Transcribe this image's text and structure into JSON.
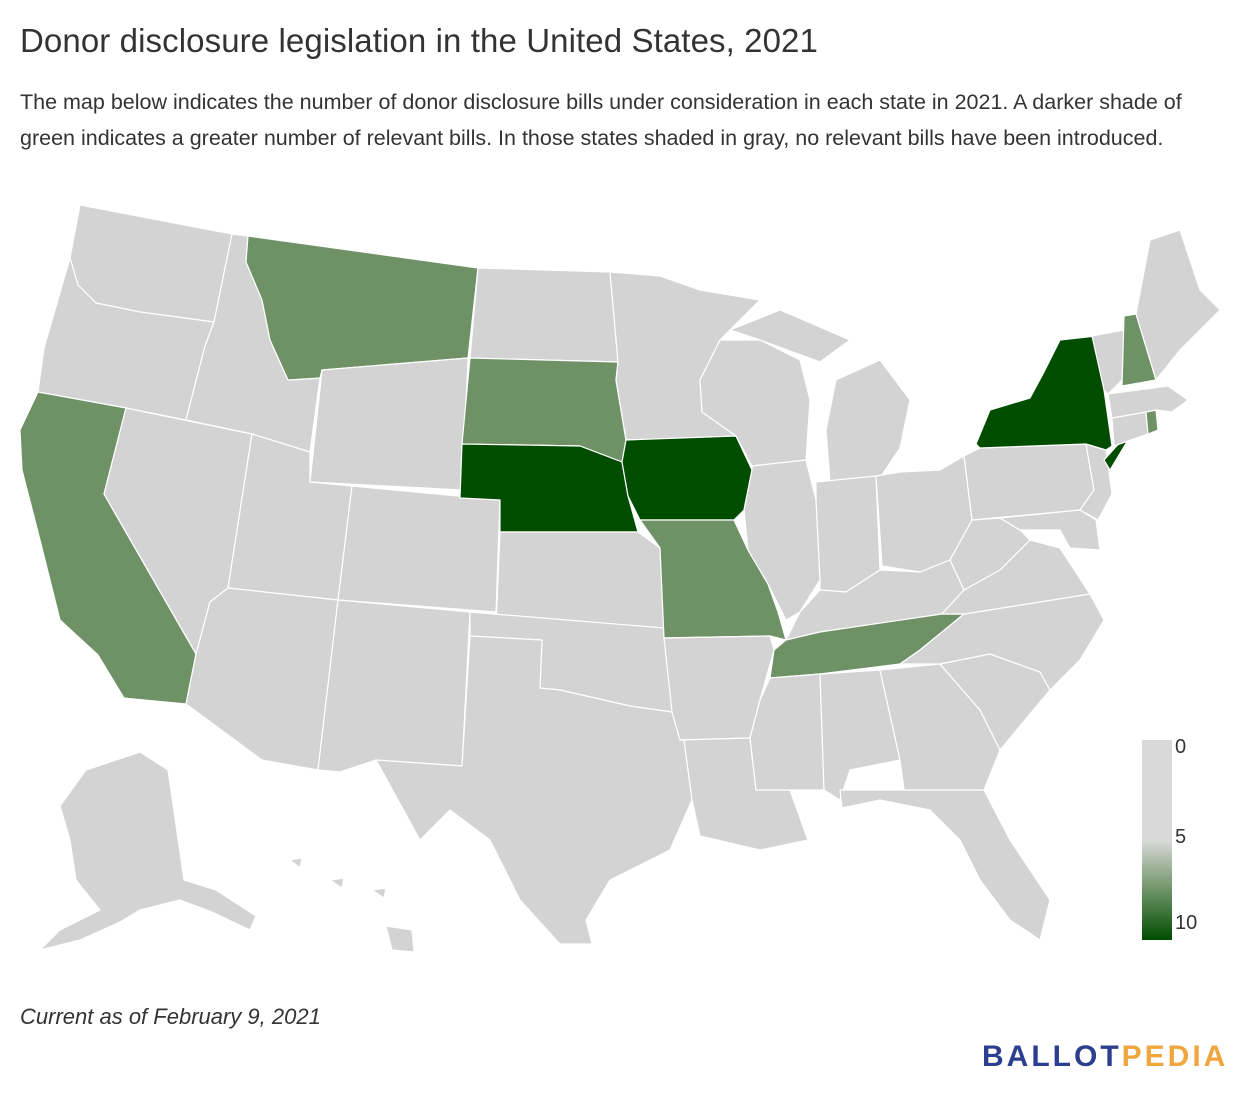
{
  "title": "Donor disclosure legislation in the United States, 2021",
  "subtitle": "The map below indicates the number of donor disclosure bills under consideration in each state in 2021. A darker shade of green indicates a greater number of relevant bills. In those states shaded in gray, no relevant bills have been introduced.",
  "footnote": "Current as of February 9, 2021",
  "logo": {
    "part1": "BALLOT",
    "part2": "PEDIA"
  },
  "colors": {
    "none": "#d3d3d3",
    "medium": "#6f9166",
    "high": "#004d00",
    "border": "#ffffff",
    "logo_blue": "#2b3e8f",
    "logo_orange": "#f0a63e"
  },
  "legend": {
    "labels": [
      "0",
      "5",
      "10"
    ],
    "min": 0,
    "max": 10
  },
  "states_high": [
    "New York",
    "Nebraska",
    "Iowa"
  ],
  "states_medium": [
    "Montana",
    "California",
    "South Dakota",
    "Missouri",
    "Tennessee",
    "New Hampshire",
    "Rhode Island"
  ]
}
